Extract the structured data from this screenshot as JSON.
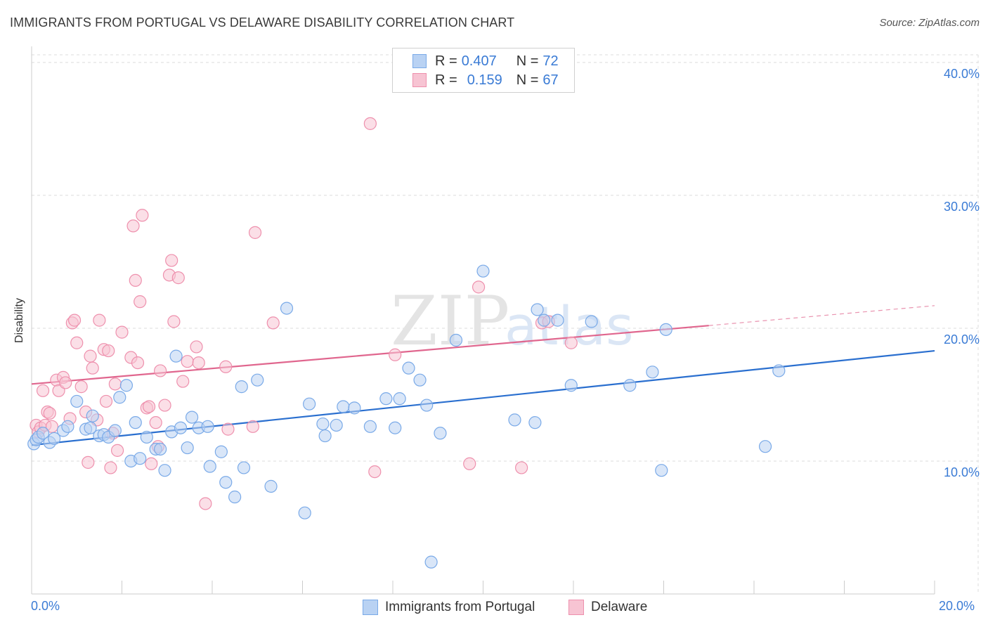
{
  "title": "IMMIGRANTS FROM PORTUGAL VS DELAWARE DISABILITY CORRELATION CHART",
  "source": "Source: ZipAtlas.com",
  "watermark": "ZIPatlas",
  "colors": {
    "series1": "#7aaae8",
    "series1_fill": "#b9d2f3",
    "series1_line": "#2a6fcf",
    "series2": "#ee90ad",
    "series2_fill": "#f7c4d3",
    "series2_line": "#e0668e",
    "tick_text": "#3a7bd5"
  },
  "legend": {
    "r_label": "R =",
    "n_label": "N =",
    "series1": {
      "r": "0.407",
      "n": "72"
    },
    "series2": {
      "r": "0.159",
      "n": "67"
    }
  },
  "chart_data": {
    "type": "scatter",
    "title": "IMMIGRANTS FROM PORTUGAL VS DELAWARE DISABILITY CORRELATION CHART",
    "xlabel": "",
    "ylabel": "Disability",
    "xlim": [
      0,
      20
    ],
    "ylim": [
      0,
      41
    ],
    "x_tick_labels": [
      "0.0%",
      "20.0%"
    ],
    "y_tick_labels": [
      "10.0%",
      "20.0%",
      "30.0%",
      "40.0%"
    ],
    "y_tick_values": [
      10,
      20,
      30,
      40
    ],
    "grid": true,
    "legend_position": "top-center",
    "series": [
      {
        "name": "Immigrants from Portugal",
        "trendline": {
          "x": [
            0,
            20
          ],
          "y": [
            11.2,
            18.3
          ],
          "dashed_from_x": null
        },
        "points": [
          [
            0.05,
            11.3
          ],
          [
            0.1,
            11.6
          ],
          [
            0.15,
            11.8
          ],
          [
            0.25,
            12.1
          ],
          [
            0.4,
            11.4
          ],
          [
            0.5,
            11.7
          ],
          [
            0.7,
            12.3
          ],
          [
            0.8,
            12.6
          ],
          [
            1.0,
            14.5
          ],
          [
            1.2,
            12.4
          ],
          [
            1.3,
            12.5
          ],
          [
            1.35,
            13.4
          ],
          [
            1.5,
            11.9
          ],
          [
            1.6,
            12.0
          ],
          [
            1.7,
            11.8
          ],
          [
            1.85,
            12.3
          ],
          [
            1.95,
            14.8
          ],
          [
            2.1,
            15.7
          ],
          [
            2.2,
            10.0
          ],
          [
            2.3,
            12.9
          ],
          [
            2.4,
            10.2
          ],
          [
            2.55,
            11.8
          ],
          [
            2.75,
            10.9
          ],
          [
            2.85,
            10.9
          ],
          [
            2.95,
            9.3
          ],
          [
            3.1,
            12.2
          ],
          [
            3.2,
            17.9
          ],
          [
            3.3,
            12.5
          ],
          [
            3.45,
            11.0
          ],
          [
            3.55,
            13.3
          ],
          [
            3.7,
            12.5
          ],
          [
            3.9,
            12.6
          ],
          [
            3.95,
            9.6
          ],
          [
            4.2,
            10.7
          ],
          [
            4.3,
            8.4
          ],
          [
            4.5,
            7.3
          ],
          [
            4.65,
            15.6
          ],
          [
            4.7,
            9.5
          ],
          [
            5.0,
            16.1
          ],
          [
            5.3,
            8.1
          ],
          [
            5.65,
            21.5
          ],
          [
            6.05,
            6.1
          ],
          [
            6.15,
            14.3
          ],
          [
            6.45,
            12.8
          ],
          [
            6.5,
            11.9
          ],
          [
            6.75,
            12.7
          ],
          [
            6.9,
            14.1
          ],
          [
            7.15,
            14.0
          ],
          [
            7.5,
            12.6
          ],
          [
            7.85,
            14.7
          ],
          [
            8.05,
            12.5
          ],
          [
            8.15,
            14.7
          ],
          [
            8.35,
            17.0
          ],
          [
            8.6,
            16.1
          ],
          [
            8.75,
            14.2
          ],
          [
            8.85,
            2.4
          ],
          [
            9.05,
            12.1
          ],
          [
            9.4,
            19.1
          ],
          [
            10.0,
            24.3
          ],
          [
            10.7,
            13.1
          ],
          [
            11.15,
            12.9
          ],
          [
            11.2,
            21.4
          ],
          [
            11.35,
            20.6
          ],
          [
            11.65,
            20.6
          ],
          [
            11.95,
            15.7
          ],
          [
            12.4,
            20.5
          ],
          [
            13.25,
            15.7
          ],
          [
            13.75,
            16.7
          ],
          [
            13.95,
            9.3
          ],
          [
            14.05,
            19.9
          ],
          [
            16.25,
            11.1
          ],
          [
            16.55,
            16.8
          ]
        ]
      },
      {
        "name": "Delaware",
        "trendline": {
          "x": [
            0,
            15
          ],
          "y": [
            15.8,
            20.2
          ],
          "dashed_from_x": 15,
          "dashed_to_x": 20,
          "dashed_to_y": 21.7
        },
        "points": [
          [
            0.1,
            12.7
          ],
          [
            0.15,
            12.2
          ],
          [
            0.2,
            12.5
          ],
          [
            0.25,
            15.3
          ],
          [
            0.3,
            12.7
          ],
          [
            0.35,
            13.7
          ],
          [
            0.4,
            13.6
          ],
          [
            0.45,
            12.6
          ],
          [
            0.55,
            16.1
          ],
          [
            0.6,
            15.3
          ],
          [
            0.7,
            16.3
          ],
          [
            0.75,
            15.9
          ],
          [
            0.85,
            13.2
          ],
          [
            0.9,
            20.4
          ],
          [
            0.95,
            20.6
          ],
          [
            1.0,
            18.9
          ],
          [
            1.1,
            15.6
          ],
          [
            1.2,
            13.7
          ],
          [
            1.25,
            9.9
          ],
          [
            1.3,
            17.9
          ],
          [
            1.35,
            17.0
          ],
          [
            1.45,
            13.1
          ],
          [
            1.5,
            20.6
          ],
          [
            1.6,
            18.4
          ],
          [
            1.65,
            14.5
          ],
          [
            1.7,
            18.3
          ],
          [
            1.75,
            9.5
          ],
          [
            1.8,
            12.1
          ],
          [
            1.85,
            15.8
          ],
          [
            1.9,
            10.8
          ],
          [
            2.0,
            19.7
          ],
          [
            2.2,
            17.8
          ],
          [
            2.25,
            27.7
          ],
          [
            2.3,
            23.6
          ],
          [
            2.35,
            17.4
          ],
          [
            2.4,
            22.0
          ],
          [
            2.45,
            28.5
          ],
          [
            2.55,
            14.0
          ],
          [
            2.6,
            14.1
          ],
          [
            2.65,
            9.8
          ],
          [
            2.75,
            12.9
          ],
          [
            2.8,
            11.1
          ],
          [
            2.85,
            16.8
          ],
          [
            2.95,
            14.2
          ],
          [
            3.05,
            24.0
          ],
          [
            3.1,
            25.1
          ],
          [
            3.15,
            20.5
          ],
          [
            3.25,
            23.8
          ],
          [
            3.35,
            16.0
          ],
          [
            3.45,
            17.5
          ],
          [
            3.65,
            18.6
          ],
          [
            3.7,
            17.4
          ],
          [
            3.85,
            6.8
          ],
          [
            4.3,
            17.1
          ],
          [
            4.35,
            12.4
          ],
          [
            4.9,
            12.6
          ],
          [
            4.95,
            27.2
          ],
          [
            5.35,
            20.4
          ],
          [
            7.5,
            35.4
          ],
          [
            7.6,
            9.2
          ],
          [
            8.05,
            18.0
          ],
          [
            9.9,
            23.1
          ],
          [
            9.7,
            9.8
          ],
          [
            10.85,
            9.5
          ],
          [
            11.3,
            20.4
          ],
          [
            11.45,
            20.5
          ],
          [
            11.95,
            18.9
          ]
        ]
      }
    ]
  },
  "bottom_legend": {
    "series1": "Immigrants from Portugal",
    "series2": "Delaware"
  }
}
